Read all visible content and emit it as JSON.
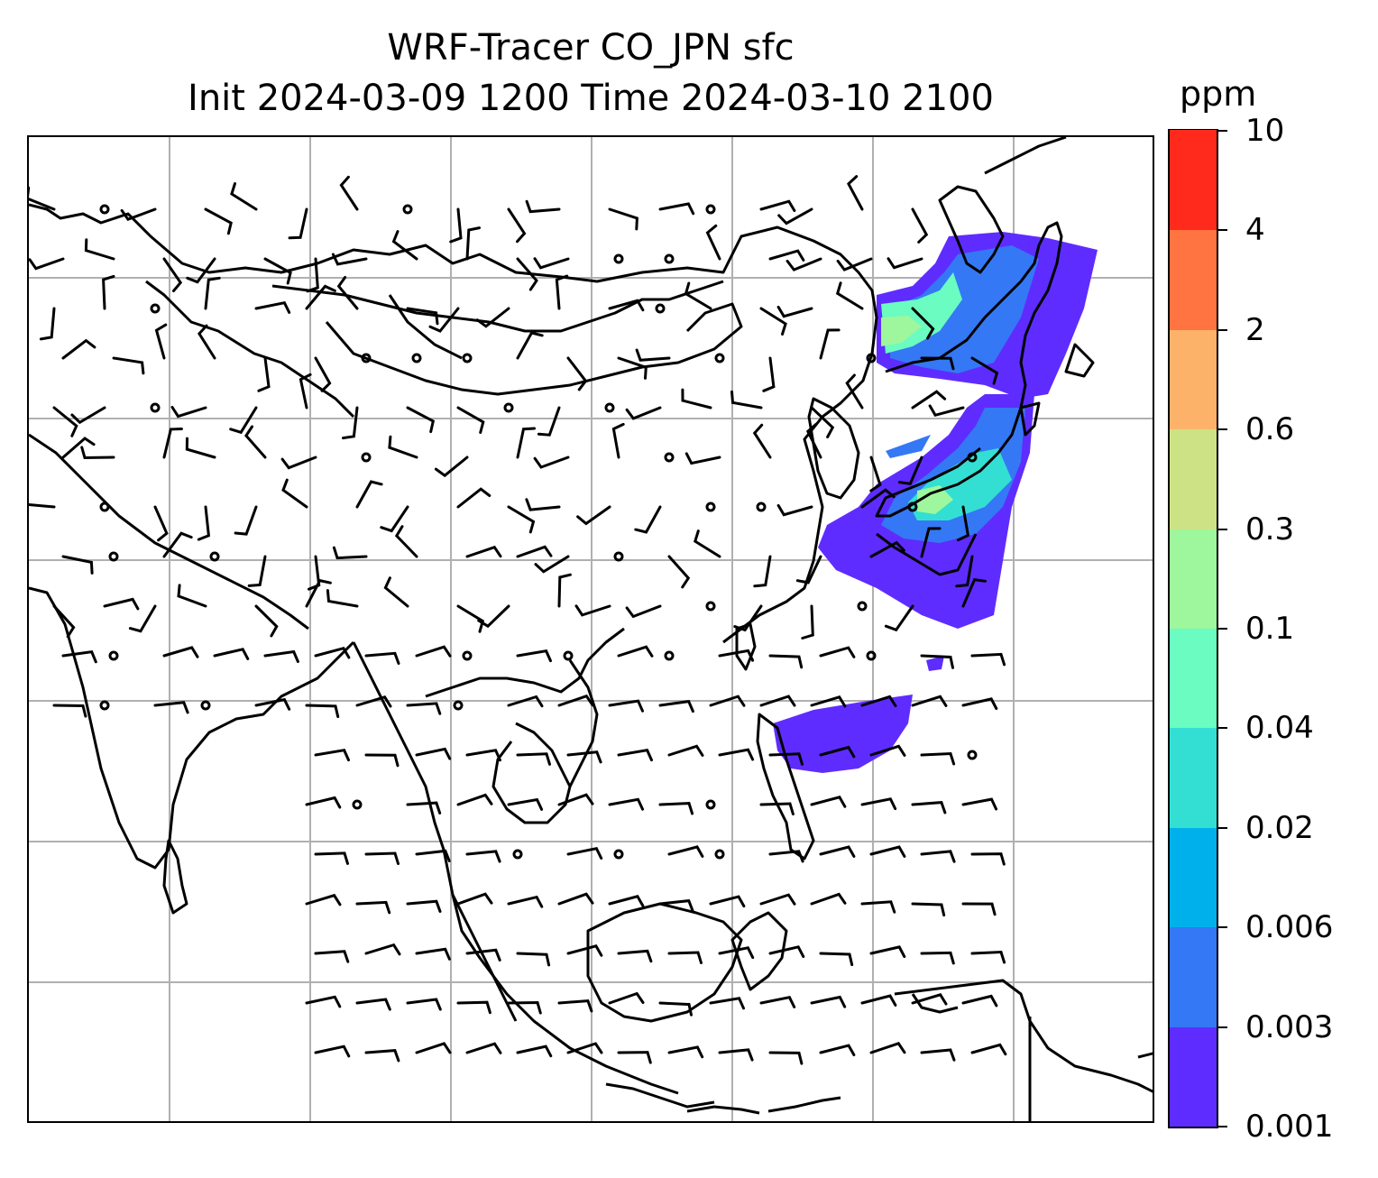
{
  "title": {
    "line1": "WRF-Tracer CO_JPN sfc",
    "line2": "Init 2024-03-09 1200 Time 2024-03-10 2100"
  },
  "colorbar": {
    "unit": "ppm",
    "levels": [
      "0.001",
      "0.003",
      "0.006",
      "0.02",
      "0.04",
      "0.1",
      "0.3",
      "0.6",
      "2",
      "4",
      "10"
    ],
    "colors": [
      "#5f2cff",
      "#3478f5",
      "#00b0ea",
      "#33dfd3",
      "#6afcc0",
      "#9ef79c",
      "#cde284",
      "#fdb26a",
      "#ff7440",
      "#ff2a1c"
    ]
  },
  "map": {
    "features": [
      "coastlines",
      "national borders",
      "lat/lon gridlines",
      "wind barbs",
      "CO tracer concentration shading"
    ],
    "plume_color_dominant": "#5f2cff"
  }
}
